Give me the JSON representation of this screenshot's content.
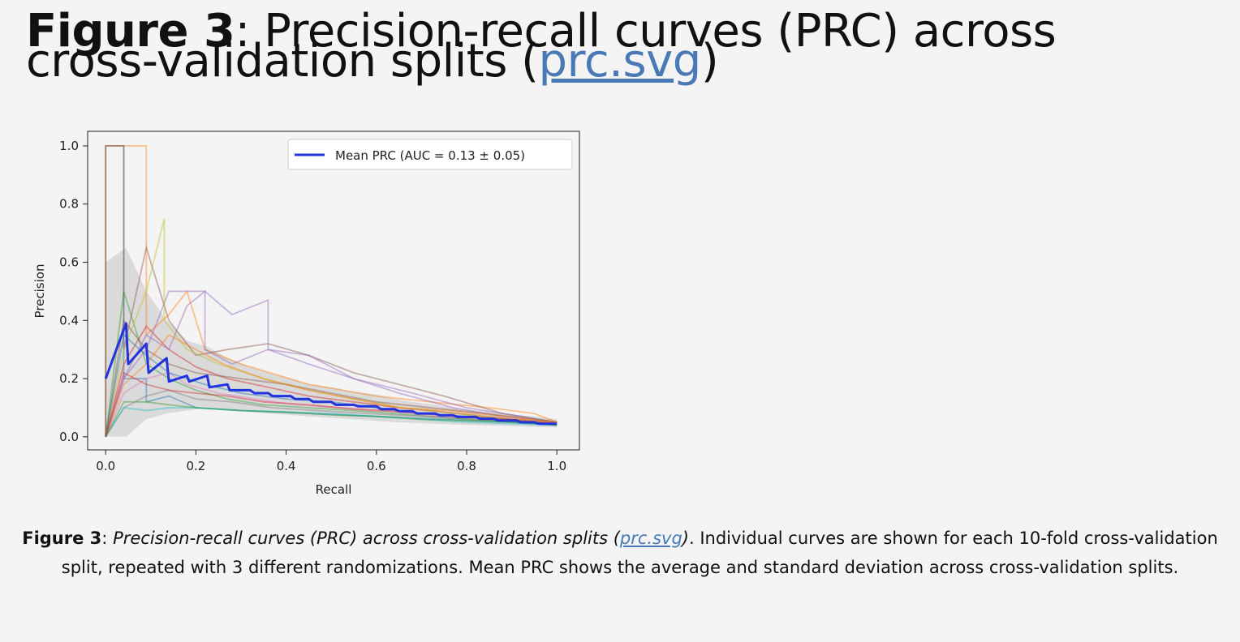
{
  "heading": {
    "figure_label": "Figure 3",
    "title": ": Precision-recall curves (PRC) across cross-validation splits (",
    "link_text": "prc.svg",
    "close": ")"
  },
  "caption": {
    "figure_label": "Figure 3",
    "sep": ": ",
    "italic_title": "Precision-recall curves (PRC) across cross-validation splits (",
    "link_text": "prc.svg",
    "italic_close": ")",
    "body": ". Individual curves are shown for each 10-fold cross-validation split, repeated with 3 different randomizations. Mean PRC shows the average and standard deviation across cross-validation splits."
  },
  "chart_data": {
    "type": "line",
    "title": "",
    "xlabel": "Recall",
    "ylabel": "Precision",
    "xlim": [
      -0.04,
      1.05
    ],
    "ylim": [
      -0.045,
      1.05
    ],
    "xticks": [
      0.0,
      0.2,
      0.4,
      0.6,
      0.8,
      1.0
    ],
    "yticks": [
      0.0,
      0.2,
      0.4,
      0.6,
      0.8,
      1.0
    ],
    "xtick_labels": [
      "0.0",
      "0.2",
      "0.4",
      "0.6",
      "0.8",
      "1.0"
    ],
    "ytick_labels": [
      "0.0",
      "0.2",
      "0.4",
      "0.6",
      "0.8",
      "1.0"
    ],
    "grid": false,
    "legend": {
      "position": "top-right",
      "entries": [
        "Mean PRC (AUC = 0.13 ± 0.05)"
      ]
    },
    "mean_series": {
      "name": "Mean PRC (AUC = 0.13 ± 0.05)",
      "color": "#2233dd",
      "x": [
        0.0,
        0.045,
        0.05,
        0.09,
        0.095,
        0.135,
        0.14,
        0.18,
        0.185,
        0.225,
        0.23,
        0.27,
        0.275,
        0.32,
        0.33,
        0.36,
        0.37,
        0.41,
        0.42,
        0.45,
        0.46,
        0.5,
        0.51,
        0.55,
        0.56,
        0.6,
        0.61,
        0.64,
        0.65,
        0.68,
        0.69,
        0.73,
        0.74,
        0.77,
        0.78,
        0.82,
        0.83,
        0.86,
        0.87,
        0.91,
        0.92,
        0.95,
        0.96,
        1.0
      ],
      "y": [
        0.2,
        0.39,
        0.25,
        0.32,
        0.22,
        0.27,
        0.19,
        0.21,
        0.19,
        0.21,
        0.17,
        0.18,
        0.16,
        0.16,
        0.15,
        0.15,
        0.14,
        0.14,
        0.13,
        0.13,
        0.12,
        0.12,
        0.11,
        0.11,
        0.105,
        0.105,
        0.095,
        0.095,
        0.088,
        0.088,
        0.08,
        0.08,
        0.074,
        0.074,
        0.068,
        0.068,
        0.062,
        0.062,
        0.056,
        0.056,
        0.05,
        0.05,
        0.045,
        0.045
      ]
    },
    "std_band": {
      "color": "#bbbbbb",
      "x": [
        0.0,
        0.045,
        0.09,
        0.135,
        0.18,
        0.225,
        0.27,
        0.32,
        0.36,
        0.41,
        0.45,
        0.5,
        0.55,
        0.6,
        0.64,
        0.68,
        0.73,
        0.77,
        0.82,
        0.86,
        0.91,
        0.95,
        1.0
      ],
      "upper": [
        0.6,
        0.65,
        0.5,
        0.4,
        0.33,
        0.31,
        0.27,
        0.24,
        0.22,
        0.2,
        0.18,
        0.17,
        0.155,
        0.145,
        0.13,
        0.12,
        0.11,
        0.1,
        0.09,
        0.085,
        0.075,
        0.07,
        0.06
      ],
      "lower": [
        0.0,
        0.0,
        0.06,
        0.08,
        0.09,
        0.1,
        0.09,
        0.085,
        0.08,
        0.075,
        0.07,
        0.065,
        0.06,
        0.055,
        0.05,
        0.048,
        0.045,
        0.042,
        0.04,
        0.038,
        0.036,
        0.034,
        0.032
      ]
    },
    "split_curves": [
      {
        "color": "#1f77b4",
        "x": [
          0.0,
          0.0,
          0.04,
          0.04,
          0.09,
          0.09,
          0.14,
          0.2,
          0.3,
          0.45,
          0.6,
          0.75,
          0.9,
          1.0
        ],
        "y": [
          0.0,
          1.0,
          1.0,
          0.2,
          0.2,
          0.12,
          0.14,
          0.1,
          0.09,
          0.08,
          0.07,
          0.06,
          0.05,
          0.04
        ]
      },
      {
        "color": "#ff7f0e",
        "x": [
          0.0,
          0.0,
          0.09,
          0.09,
          0.14,
          0.18,
          0.22,
          0.3,
          0.45,
          0.6,
          0.72,
          0.85,
          0.95,
          1.0
        ],
        "y": [
          0.0,
          1.0,
          1.0,
          0.35,
          0.42,
          0.5,
          0.3,
          0.25,
          0.18,
          0.14,
          0.12,
          0.1,
          0.08,
          0.05
        ]
      },
      {
        "color": "#2ca02c",
        "x": [
          0.0,
          0.04,
          0.09,
          0.14,
          0.2,
          0.27,
          0.35,
          0.45,
          0.55,
          0.68,
          0.8,
          0.92,
          1.0
        ],
        "y": [
          0.0,
          0.5,
          0.25,
          0.2,
          0.16,
          0.13,
          0.11,
          0.1,
          0.09,
          0.075,
          0.06,
          0.05,
          0.04
        ]
      },
      {
        "color": "#d62728",
        "x": [
          0.0,
          0.04,
          0.09,
          0.14,
          0.2,
          0.27,
          0.36,
          0.45,
          0.55,
          0.65,
          0.78,
          0.9,
          1.0
        ],
        "y": [
          0.0,
          0.25,
          0.38,
          0.3,
          0.24,
          0.2,
          0.17,
          0.14,
          0.12,
          0.1,
          0.08,
          0.06,
          0.05
        ]
      },
      {
        "color": "#9467bd",
        "x": [
          0.0,
          0.04,
          0.09,
          0.14,
          0.22,
          0.28,
          0.36,
          0.36,
          0.45,
          0.55,
          0.65,
          0.77,
          0.88,
          1.0
        ],
        "y": [
          0.0,
          0.2,
          0.3,
          0.5,
          0.5,
          0.42,
          0.47,
          0.3,
          0.25,
          0.2,
          0.15,
          0.1,
          0.07,
          0.05
        ]
      },
      {
        "color": "#8c564b",
        "x": [
          0.0,
          0.0,
          0.04,
          0.04,
          0.09,
          0.14,
          0.2,
          0.27,
          0.36,
          0.45,
          0.55,
          0.65,
          0.75,
          0.88,
          1.0
        ],
        "y": [
          0.0,
          1.0,
          1.0,
          0.3,
          0.65,
          0.4,
          0.28,
          0.3,
          0.32,
          0.28,
          0.22,
          0.18,
          0.14,
          0.08,
          0.05
        ]
      },
      {
        "color": "#e377c2",
        "x": [
          0.0,
          0.04,
          0.09,
          0.14,
          0.18,
          0.25,
          0.33,
          0.42,
          0.52,
          0.62,
          0.74,
          0.86,
          1.0
        ],
        "y": [
          0.0,
          0.15,
          0.2,
          0.22,
          0.18,
          0.15,
          0.13,
          0.11,
          0.1,
          0.09,
          0.07,
          0.06,
          0.04
        ]
      },
      {
        "color": "#7f7f7f",
        "x": [
          0.0,
          0.04,
          0.09,
          0.14,
          0.2,
          0.28,
          0.37,
          0.47,
          0.58,
          0.7,
          0.82,
          0.94,
          1.0
        ],
        "y": [
          0.0,
          0.1,
          0.14,
          0.16,
          0.13,
          0.12,
          0.1,
          0.09,
          0.08,
          0.07,
          0.06,
          0.05,
          0.04
        ]
      },
      {
        "color": "#bcbd22",
        "x": [
          0.0,
          0.04,
          0.09,
          0.13,
          0.13,
          0.18,
          0.25,
          0.35,
          0.45,
          0.55,
          0.66,
          0.78,
          0.9,
          1.0
        ],
        "y": [
          0.0,
          0.3,
          0.5,
          0.75,
          0.4,
          0.3,
          0.25,
          0.2,
          0.16,
          0.13,
          0.1,
          0.08,
          0.06,
          0.05
        ]
      },
      {
        "color": "#17becf",
        "x": [
          0.0,
          0.04,
          0.09,
          0.14,
          0.2,
          0.3,
          0.4,
          0.5,
          0.6,
          0.7,
          0.8,
          0.9,
          1.0
        ],
        "y": [
          0.0,
          0.1,
          0.09,
          0.1,
          0.1,
          0.09,
          0.085,
          0.08,
          0.07,
          0.06,
          0.05,
          0.045,
          0.04
        ]
      },
      {
        "color": "#9467bd",
        "x": [
          0.0,
          0.04,
          0.09,
          0.14,
          0.18,
          0.22,
          0.22,
          0.28,
          0.36,
          0.45,
          0.55,
          0.68,
          0.8,
          0.92,
          1.0
        ],
        "y": [
          0.0,
          0.2,
          0.35,
          0.3,
          0.45,
          0.5,
          0.3,
          0.25,
          0.3,
          0.28,
          0.2,
          0.15,
          0.1,
          0.07,
          0.05
        ]
      },
      {
        "color": "#8c564b",
        "x": [
          0.0,
          0.04,
          0.09,
          0.14,
          0.2,
          0.3,
          0.4,
          0.5,
          0.6,
          0.72,
          0.84,
          0.95,
          1.0
        ],
        "y": [
          0.0,
          0.4,
          0.3,
          0.25,
          0.22,
          0.2,
          0.18,
          0.15,
          0.12,
          0.1,
          0.08,
          0.06,
          0.05
        ]
      },
      {
        "color": "#ff7f0e",
        "x": [
          0.0,
          0.04,
          0.09,
          0.14,
          0.2,
          0.26,
          0.35,
          0.45,
          0.55,
          0.65,
          0.76,
          0.88,
          1.0
        ],
        "y": [
          0.0,
          0.18,
          0.25,
          0.35,
          0.3,
          0.25,
          0.2,
          0.16,
          0.13,
          0.1,
          0.09,
          0.07,
          0.05
        ]
      },
      {
        "color": "#2ca02c",
        "x": [
          0.0,
          0.04,
          0.09,
          0.14,
          0.2,
          0.3,
          0.4,
          0.5,
          0.6,
          0.7,
          0.8,
          0.9,
          1.0
        ],
        "y": [
          0.0,
          0.12,
          0.12,
          0.11,
          0.1,
          0.09,
          0.085,
          0.075,
          0.07,
          0.06,
          0.055,
          0.05,
          0.04
        ]
      },
      {
        "color": "#1f77b4",
        "x": [
          0.0,
          0.04,
          0.09,
          0.14,
          0.22,
          0.3,
          0.4,
          0.5,
          0.6,
          0.7,
          0.8,
          0.9,
          1.0
        ],
        "y": [
          0.0,
          0.35,
          0.28,
          0.22,
          0.18,
          0.15,
          0.13,
          0.12,
          0.1,
          0.08,
          0.07,
          0.055,
          0.045
        ]
      },
      {
        "color": "#d62728",
        "x": [
          0.0,
          0.04,
          0.09,
          0.14,
          0.2,
          0.27,
          0.35,
          0.45,
          0.55,
          0.66,
          0.78,
          0.9,
          1.0
        ],
        "y": [
          0.0,
          0.22,
          0.18,
          0.16,
          0.15,
          0.14,
          0.12,
          0.11,
          0.095,
          0.085,
          0.07,
          0.06,
          0.045
        ]
      }
    ]
  }
}
